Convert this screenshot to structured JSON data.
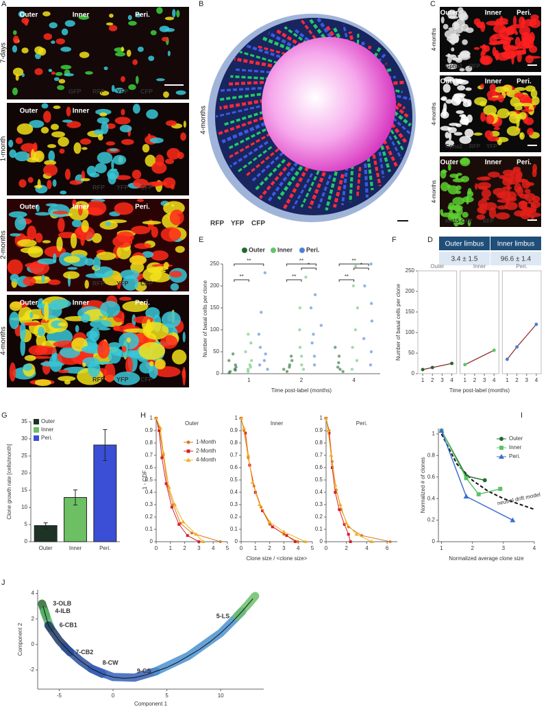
{
  "images": {
    "A": {
      "letter": "A",
      "tiles": [
        {
          "time": "7-days",
          "columns": [
            "Outer",
            "Inner",
            "Peri."
          ],
          "background": "#140808",
          "legend": [
            {
              "name": "GFP",
              "color": "#3ccf3c"
            },
            {
              "name": "RFP",
              "color": "#ff2a1a"
            },
            {
              "name": "YFP",
              "color": "#f2e21a"
            },
            {
              "name": "CFP",
              "color": "#38c8d8"
            }
          ]
        },
        {
          "time": "1-month",
          "columns": [
            "Outer",
            "Inner"
          ],
          "background": "#100606",
          "legend": [
            {
              "name": "RFP",
              "color": "#ff2a1a"
            },
            {
              "name": "YFP",
              "color": "#f2e21a"
            },
            {
              "name": "CFP",
              "color": "#38c8d8"
            }
          ]
        },
        {
          "time": "2-months",
          "columns": [
            "Outer",
            "Inner",
            "Peri."
          ],
          "background": "#2a0404",
          "legend": [
            {
              "name": "RFP",
              "color": "#ff2a1a"
            },
            {
              "name": "YFP",
              "color": "#f2e21a"
            },
            {
              "name": "CFP",
              "color": "#38c8d8"
            }
          ]
        },
        {
          "time": "4-months",
          "columns": [
            "Outer",
            "Inner",
            "Peri."
          ],
          "background": "#120505",
          "legend": [
            {
              "name": "RFP",
              "color": "#ff2a1a"
            },
            {
              "name": "YFP",
              "color": "#f2e21a"
            },
            {
              "name": "CFP",
              "color": "#38c8d8"
            }
          ]
        }
      ]
    },
    "B": {
      "letter": "B",
      "time": "4-months",
      "legend": [
        {
          "name": "RFP",
          "color": "#ff2a3a"
        },
        {
          "name": "YFP",
          "color": "#22c86a"
        },
        {
          "name": "CFP",
          "color": "#3a5ae0"
        }
      ]
    },
    "C": {
      "letter": "C",
      "tiles": [
        {
          "time": "4-months",
          "columns": [
            "Outer",
            "Inner",
            "Peri."
          ],
          "stains": [
            {
              "name": "Gpha2",
              "color": "#e8e8e8"
            },
            {
              "name": "RFP",
              "color": "#ff2020"
            }
          ]
        },
        {
          "time": "4-months",
          "columns": [
            "Outer",
            "Inner",
            "Peri."
          ],
          "stains": [
            {
              "name": "Gpha2",
              "color": "#ffffff"
            },
            {
              "name": "RFP",
              "color": "#ff2020"
            },
            {
              "name": "YFP",
              "color": "#e8e020"
            }
          ]
        },
        {
          "time": "4-months",
          "columns": [
            "Outer",
            "Inner",
            "Peri."
          ],
          "stains": [
            {
              "name": "Krt15-GFP",
              "color": "#5cd030"
            },
            {
              "name": "RFP",
              "color": "#e0201a"
            }
          ]
        }
      ]
    }
  },
  "table": {
    "letter": "D",
    "header": [
      "Outer limbus",
      "Inner limbus"
    ],
    "rows": [
      [
        "3.4 ± 1.5",
        "96.6 ± 1.4"
      ]
    ]
  },
  "chart_data": [
    {
      "type": "strip",
      "letter": "E",
      "ylabel": "Number of basal cells per clone",
      "xlabel": "Time post-label (months)",
      "categories": [
        "1",
        "2",
        "4"
      ],
      "ylim": [
        0,
        250
      ],
      "yticks": [
        0,
        50,
        100,
        150,
        200,
        250
      ],
      "significance": [
        [
          "**",
          "**"
        ],
        [
          "**",
          "**",
          "*"
        ],
        [
          "**",
          "**",
          "*"
        ]
      ],
      "series": [
        {
          "name": "Outer",
          "color": "#1f6b2e",
          "values": [
            [
              2,
              5,
              8,
              10,
              15,
              20,
              30,
              45
            ],
            [
              5,
              10,
              15,
              20,
              30,
              40
            ],
            [
              5,
              10,
              15,
              25,
              40,
              60
            ]
          ]
        },
        {
          "name": "Inner",
          "color": "#62c46c",
          "values": [
            [
              5,
              10,
              15,
              20,
              30,
              50,
              70,
              90
            ],
            [
              10,
              20,
              40,
              60,
              100,
              150,
              220
            ],
            [
              10,
              30,
              60,
              100,
              150,
              200,
              245
            ]
          ]
        },
        {
          "name": "Peri.",
          "color": "#4d7fd9",
          "values": [
            [
              10,
              20,
              30,
              45,
              60,
              90,
              140,
              230
            ],
            [
              20,
              40,
              70,
              90,
              110,
              150,
              180
            ],
            [
              20,
              50,
              80,
              120,
              160,
              200,
              250
            ]
          ]
        }
      ]
    },
    {
      "type": "line-panels",
      "letter": "F",
      "ylabel": "Number of basal cells per clone",
      "xlabel": "Time post-label (months)",
      "xlim": [
        0.5,
        4.5
      ],
      "xticks": [
        1,
        2,
        3,
        4
      ],
      "ylim": [
        0,
        250
      ],
      "yticks": [
        0,
        50,
        100,
        150,
        200,
        250
      ],
      "panels": [
        {
          "title": "Outer",
          "color": "#1f6b2e",
          "x": [
            1,
            2,
            4
          ],
          "values": [
            10,
            15,
            25
          ]
        },
        {
          "title": "Inner",
          "color": "#62c46c",
          "x": [
            1,
            4
          ],
          "values": [
            22,
            57
          ]
        },
        {
          "title": "Peri.",
          "color": "#4d7fd9",
          "x": [
            1,
            2,
            4
          ],
          "values": [
            35,
            65,
            120
          ]
        }
      ]
    },
    {
      "type": "bar",
      "letter": "G",
      "ylabel": "Clone growth rate [cells/month]",
      "categories": [
        "Outer",
        "Inner",
        "Peri."
      ],
      "values": [
        4.7,
        12.9,
        28.2
      ],
      "errors": [
        0.8,
        2.2,
        4.5
      ],
      "colors": [
        "#1c3326",
        "#6cbf62",
        "#3a4fd6"
      ],
      "ylim": [
        0,
        35
      ],
      "yticks": [
        0,
        5,
        10,
        15,
        20,
        25,
        30,
        35
      ]
    },
    {
      "type": "cdf-panels",
      "letter": "H",
      "ylabel": "1 - CDF",
      "xlabel": "Clone size / <clone size>",
      "ylim": [
        0,
        1
      ],
      "yticks": [
        0,
        0.1,
        0.2,
        0.3,
        0.4,
        0.5,
        0.6,
        0.7,
        0.8,
        0.9,
        1
      ],
      "legend": [
        {
          "name": "1-Month",
          "color": "#d9791a",
          "marker": "circle"
        },
        {
          "name": "2-Month",
          "color": "#d8202a",
          "marker": "square"
        },
        {
          "name": "4-Month",
          "color": "#f0b020",
          "marker": "triangle"
        }
      ],
      "panels": [
        {
          "title": "Outer",
          "xlim": [
            0,
            5
          ],
          "xticks": [
            0,
            1,
            2,
            3,
            4,
            5
          ],
          "series": [
            {
              "x": [
                0,
                0.2,
                0.5,
                0.8,
                1.2,
                1.7,
                2.5,
                4.5
              ],
              "values": [
                1,
                0.93,
                0.7,
                0.45,
                0.3,
                0.15,
                0.07,
                0
              ]
            },
            {
              "x": [
                0,
                0.2,
                0.4,
                0.7,
                1.1,
                1.6,
                2.2,
                3
              ],
              "values": [
                1,
                0.9,
                0.68,
                0.47,
                0.28,
                0.14,
                0.05,
                0
              ]
            },
            {
              "x": [
                0,
                0.3,
                0.5,
                0.9,
                1.3,
                1.9,
                2.8,
                3.3
              ],
              "values": [
                1,
                0.92,
                0.72,
                0.44,
                0.3,
                0.16,
                0.06,
                0
              ]
            }
          ]
        },
        {
          "title": "Inner",
          "xlim": [
            0,
            5
          ],
          "xticks": [
            0,
            1,
            2,
            3,
            4,
            5
          ],
          "series": [
            {
              "x": [
                0,
                0.2,
                0.5,
                0.9,
                1.4,
                2,
                3,
                4
              ],
              "values": [
                1,
                0.9,
                0.68,
                0.45,
                0.28,
                0.14,
                0.06,
                0
              ]
            },
            {
              "x": [
                0,
                0.3,
                0.6,
                1,
                1.5,
                2.2,
                3.2,
                3.8
              ],
              "values": [
                1,
                0.88,
                0.62,
                0.4,
                0.25,
                0.12,
                0.05,
                0
              ]
            },
            {
              "x": [
                0,
                0.2,
                0.5,
                0.8,
                1.3,
                2,
                3,
                4.5
              ],
              "values": [
                1,
                0.92,
                0.7,
                0.48,
                0.3,
                0.16,
                0.08,
                0
              ]
            }
          ]
        },
        {
          "title": "Peri.",
          "xlim": [
            0,
            7
          ],
          "xticks": [
            0,
            2,
            4,
            6
          ],
          "series": [
            {
              "x": [
                0,
                0.3,
                0.6,
                1,
                1.5,
                2.2,
                3.5,
                6.3
              ],
              "values": [
                1,
                0.9,
                0.65,
                0.42,
                0.26,
                0.12,
                0.05,
                0
              ]
            },
            {
              "x": [
                0,
                0.3,
                0.6,
                0.9,
                1.3,
                1.8,
                2.2,
                2.4
              ],
              "values": [
                1,
                0.88,
                0.6,
                0.4,
                0.26,
                0.14,
                0.06,
                0
              ]
            },
            {
              "x": [
                0,
                0.2,
                0.5,
                0.9,
                1.4,
                2,
                3,
                4.5
              ],
              "values": [
                1,
                0.9,
                0.7,
                0.46,
                0.3,
                0.15,
                0.06,
                0
              ]
            }
          ]
        }
      ]
    },
    {
      "type": "line",
      "letter": "I",
      "ylabel": "Normalized # of clones",
      "xlabel": "Normalized average clone size",
      "xlim": [
        0.9,
        4
      ],
      "xticks": [
        1,
        2,
        3,
        4
      ],
      "ylim": [
        0,
        1.05
      ],
      "yticks": [
        0,
        0.2,
        0.4,
        0.6,
        0.8,
        1
      ],
      "series": [
        {
          "name": "Outer",
          "color": "#1f6b2e",
          "marker": "circle",
          "x": [
            1,
            1.8,
            2.4
          ],
          "values": [
            1.03,
            0.61,
            0.57
          ]
        },
        {
          "name": "Inner",
          "color": "#5cc26a",
          "marker": "square",
          "x": [
            1,
            1.8,
            2.2,
            2.9
          ],
          "values": [
            1.03,
            0.59,
            0.44,
            0.49
          ]
        },
        {
          "name": "Peri.",
          "color": "#3a6fd0",
          "marker": "triangle",
          "x": [
            1,
            1.8,
            3.3
          ],
          "values": [
            1.03,
            0.42,
            0.2
          ]
        }
      ],
      "model": {
        "name": "neutral drift model",
        "x": [
          1,
          1.5,
          2,
          2.5,
          3,
          3.5,
          4
        ],
        "values": [
          1,
          0.72,
          0.57,
          0.47,
          0.4,
          0.35,
          0.3
        ]
      }
    },
    {
      "type": "trajectory",
      "letter": "J",
      "xlabel": "Component 1",
      "ylabel": "Component 2",
      "xlim": [
        -7,
        14
      ],
      "xticks": [
        -5,
        0,
        5,
        10
      ],
      "ylim": [
        -3.5,
        4.3
      ],
      "yticks": [
        -2,
        0,
        2,
        4
      ],
      "trajectory": {
        "x": [
          -6.5,
          -6,
          -5,
          -4,
          -3,
          -2,
          -1,
          0,
          1,
          2,
          3,
          4,
          5,
          6,
          7,
          8,
          9,
          10,
          11,
          12,
          13
        ],
        "values": [
          3,
          1.5,
          0.3,
          -0.6,
          -1.3,
          -1.9,
          -2.3,
          -2.55,
          -2.65,
          -2.6,
          -2.4,
          -2.1,
          -1.8,
          -1.4,
          -0.9,
          -0.4,
          0.2,
          0.9,
          1.7,
          2.6,
          3.6
        ]
      },
      "clusters": [
        {
          "name": "3-OLB",
          "color": "#2a6a30",
          "x": [
            -6.6,
            -6.2
          ],
          "y": [
            3.2,
            2.2
          ]
        },
        {
          "name": "4-ILB",
          "color": "#58b868",
          "x": [
            -6.4,
            -5.8
          ],
          "y": [
            2.6,
            1.3
          ]
        },
        {
          "name": "6-CB1",
          "color": "#1f3a6a",
          "x": [
            -6,
            -5,
            -4
          ],
          "y": [
            1.5,
            0.3,
            -0.6
          ]
        },
        {
          "name": "7-CB2",
          "color": "#2a4f9a",
          "x": [
            -4.5,
            -3,
            -2,
            -1
          ],
          "y": [
            -0.2,
            -1.3,
            -1.9,
            -2.3
          ]
        },
        {
          "name": "8-CW",
          "color": "#3560b8",
          "x": [
            -2,
            0,
            2,
            4
          ],
          "y": [
            -1.9,
            -2.55,
            -2.6,
            -2.1
          ]
        },
        {
          "name": "9-CS",
          "color": "#4a90d0",
          "x": [
            4,
            7,
            10,
            12
          ],
          "y": [
            -2.1,
            -0.9,
            0.9,
            2.6
          ]
        },
        {
          "name": "5-LS",
          "color": "#6abf6a",
          "x": [
            11.5,
            12.5,
            13.2
          ],
          "y": [
            2.2,
            3.1,
            3.8
          ]
        }
      ]
    }
  ]
}
